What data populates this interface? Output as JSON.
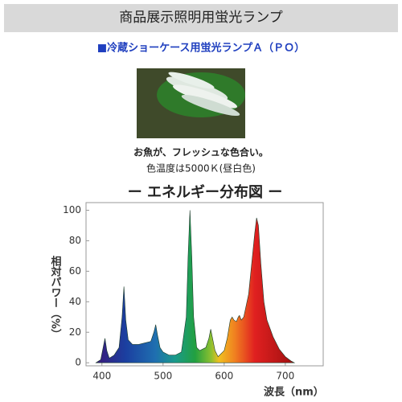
{
  "header": {
    "title": "商品展示照明用蛍光ランプ"
  },
  "section": {
    "heading": "■冷蔵ショーケース用蛍光ランプＡ（ＰＯ）"
  },
  "caption": {
    "line1": "お魚が、フレッシュな色合い。",
    "line2": "色温度は5000Ｋ(昼白色)"
  },
  "chart_data": {
    "type": "area",
    "title": "ー エネルギー分布図 ー",
    "x_label": "波長（nm）",
    "y_label": "相対パワー（%）",
    "x": [
      390,
      398,
      402,
      405,
      408,
      412,
      420,
      428,
      433,
      436,
      439,
      443,
      450,
      460,
      470,
      480,
      485,
      488,
      491,
      495,
      500,
      510,
      520,
      530,
      538,
      541,
      544,
      547,
      550,
      555,
      560,
      570,
      575,
      578,
      581,
      585,
      590,
      600,
      605,
      610,
      613,
      616,
      620,
      623,
      625,
      628,
      632,
      640,
      645,
      650,
      653,
      656,
      660,
      665,
      670,
      680,
      690,
      700,
      710,
      715
    ],
    "values": [
      0,
      2,
      10,
      16,
      8,
      3,
      5,
      10,
      30,
      50,
      28,
      15,
      12,
      12,
      13,
      14,
      20,
      25,
      18,
      10,
      7,
      5,
      5,
      7,
      30,
      70,
      100,
      70,
      30,
      10,
      8,
      10,
      16,
      22,
      16,
      8,
      4,
      8,
      16,
      28,
      30,
      28,
      27,
      30,
      31,
      28,
      30,
      45,
      65,
      85,
      95,
      90,
      65,
      40,
      28,
      17,
      9,
      4,
      1,
      0
    ],
    "xlim": [
      374,
      762
    ],
    "ylim": [
      -2,
      105
    ],
    "xticks": [
      400,
      500,
      600,
      700
    ],
    "yticks": [
      0,
      20,
      40,
      60,
      80,
      100
    ]
  }
}
